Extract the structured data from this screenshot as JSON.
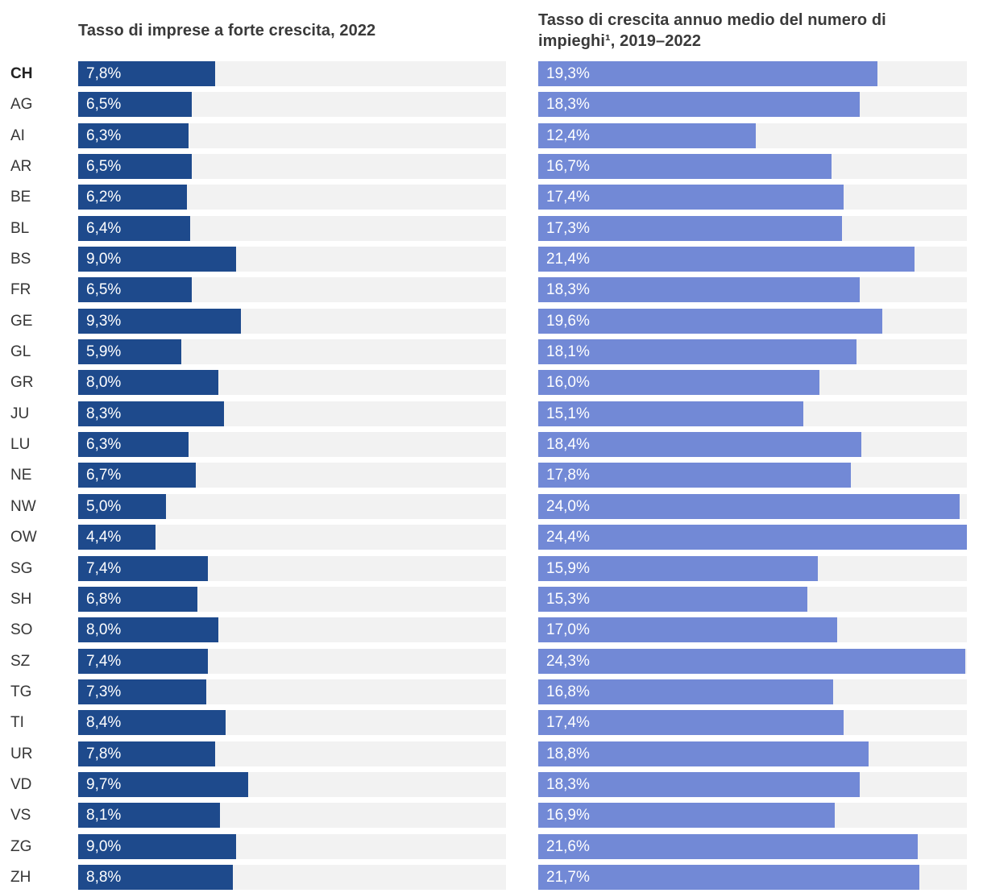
{
  "page": {
    "background": "#ffffff"
  },
  "chart_data": {
    "type": "bar",
    "orientation": "horizontal",
    "grid": false,
    "legend": "none",
    "value_labels": "inside-left, white, decimal comma, percent",
    "xlim": [
      0,
      24.4
    ],
    "track_color": "#f2f2f2",
    "bold_category": "CH",
    "categories": [
      "CH",
      "AG",
      "AI",
      "AR",
      "BE",
      "BL",
      "BS",
      "FR",
      "GE",
      "GL",
      "GR",
      "JU",
      "LU",
      "NE",
      "NW",
      "OW",
      "SG",
      "SH",
      "SO",
      "SZ",
      "TG",
      "TI",
      "UR",
      "VD",
      "VS",
      "ZG",
      "ZH"
    ],
    "series": [
      {
        "name": "Tasso di imprese a forte crescita, 2022",
        "color": "#1e4a8c",
        "values": [
          7.8,
          6.5,
          6.3,
          6.5,
          6.2,
          6.4,
          9.0,
          6.5,
          9.3,
          5.9,
          8.0,
          8.3,
          6.3,
          6.7,
          5.0,
          4.4,
          7.4,
          6.8,
          8.0,
          7.4,
          7.3,
          8.4,
          7.8,
          9.7,
          8.1,
          9.0,
          8.8
        ],
        "labels": [
          "7,8%",
          "6,5%",
          "6,3%",
          "6,5%",
          "6,2%",
          "6,4%",
          "9,0%",
          "6,5%",
          "9,3%",
          "5,9%",
          "8,0%",
          "8,3%",
          "6,3%",
          "6,7%",
          "5,0%",
          "4,4%",
          "7,4%",
          "6,8%",
          "8,0%",
          "7,4%",
          "7,3%",
          "8,4%",
          "7,8%",
          "9,7%",
          "8,1%",
          "9,0%",
          "8,8%"
        ]
      },
      {
        "name": "Tasso di crescita annuo medio del numero di impieghi¹, 2019–2022",
        "color": "#7289d6",
        "values": [
          19.3,
          18.3,
          12.4,
          16.7,
          17.4,
          17.3,
          21.4,
          18.3,
          19.6,
          18.1,
          16.0,
          15.1,
          18.4,
          17.8,
          24.0,
          24.4,
          15.9,
          15.3,
          17.0,
          24.3,
          16.8,
          17.4,
          18.8,
          18.3,
          16.9,
          21.6,
          21.7
        ],
        "labels": [
          "19,3%",
          "18,3%",
          "12,4%",
          "16,7%",
          "17,4%",
          "17,3%",
          "21,4%",
          "18,3%",
          "19,6%",
          "18,1%",
          "16,0%",
          "15,1%",
          "18,4%",
          "17,8%",
          "24,0%",
          "24,4%",
          "15,9%",
          "15,3%",
          "17,0%",
          "24,3%",
          "16,8%",
          "17,4%",
          "18,8%",
          "18,3%",
          "16,9%",
          "21,6%",
          "21,7%"
        ]
      }
    ]
  }
}
